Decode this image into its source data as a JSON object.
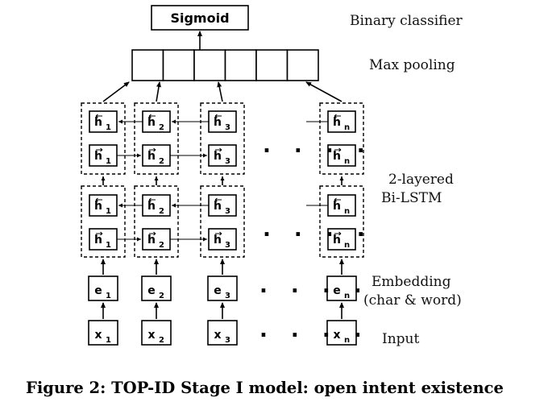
{
  "diagram": {
    "sigmoid_label": "Sigmoid",
    "binary_classifier_label": "Binary classifier",
    "max_pooling_label": "Max pooling",
    "bilstm_label_line1": "2-layered",
    "bilstm_label_line2": "Bi-LSTM",
    "embedding_label_line1": "Embedding",
    "embedding_label_line2": "(char & word)",
    "input_label": "Input",
    "ellipsis": ". . . .",
    "columns": [
      {
        "sub": "1"
      },
      {
        "sub": "2"
      },
      {
        "sub": "3"
      },
      {
        "sub": "n"
      }
    ],
    "hidden_letter": "h",
    "embedding_letter": "e",
    "input_letter": "x",
    "max_pool_cell_count": 6
  },
  "caption": {
    "text": "Figure 2: TOP-ID Stage I model: open intent existence"
  }
}
